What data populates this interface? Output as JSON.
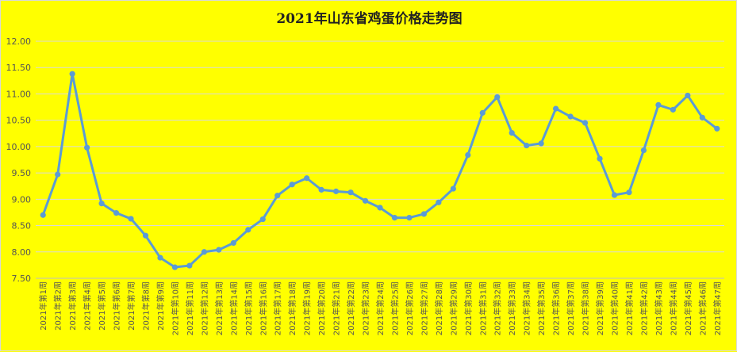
{
  "chart_data": {
    "type": "line",
    "title": "2021年山东省鸡蛋价格走势图",
    "xlabel": "",
    "ylabel": "",
    "ylim": [
      7.5,
      12.0
    ],
    "ystep": 0.5,
    "ytick_labels": [
      "7.50",
      "8.00",
      "8.50",
      "9.00",
      "9.50",
      "10.00",
      "10.50",
      "11.00",
      "11.50",
      "12.00"
    ],
    "grid": true,
    "legend": "none",
    "line_color": "#5b9bd5",
    "background": "#ffff00",
    "categories": [
      "2021年第1周",
      "2021年第2周",
      "2021年第3周",
      "2021年第4周",
      "2021年第5周",
      "2021年第6周",
      "2021年第7周",
      "2021年第8周",
      "2021年第9周",
      "2021年第10周",
      "2021年第11周",
      "2021年第12周",
      "2021年第13周",
      "2021年第14周",
      "2021年第15周",
      "2021年第16周",
      "2021年第17周",
      "2021年第18周",
      "2021年第19周",
      "2021年第20周",
      "2021年第21周",
      "2021年第22周",
      "2021年第23周",
      "2021年第24周",
      "2021年第25周",
      "2021年第26周",
      "2021年第27周",
      "2021年第28周",
      "2021年第29周",
      "2021年第30周",
      "2021年第31周",
      "2021年第32周",
      "2021年第33周",
      "2021年第34周",
      "2021年第35周",
      "2021年第36周",
      "2021年第37周",
      "2021年第38周",
      "2021年第39周",
      "2021年第40周",
      "2021年第41周",
      "2021年第42周",
      "2021年第43周",
      "2021年第44周",
      "2021年第45周",
      "2021年第46周",
      "2021年第47周"
    ],
    "series": [
      {
        "values": [
          8.7,
          9.47,
          11.38,
          9.98,
          8.92,
          8.74,
          8.63,
          8.31,
          7.89,
          7.71,
          7.74,
          8.0,
          8.04,
          8.17,
          8.42,
          8.62,
          9.07,
          9.28,
          9.4,
          9.18,
          9.15,
          9.13,
          8.97,
          8.84,
          8.65,
          8.65,
          8.72,
          8.94,
          9.2,
          9.84,
          10.64,
          10.94,
          10.26,
          10.02,
          10.06,
          10.72,
          10.57,
          10.45,
          9.77,
          9.08,
          9.13,
          9.93,
          10.79,
          10.7,
          10.97,
          10.55,
          10.34
        ]
      }
    ]
  }
}
